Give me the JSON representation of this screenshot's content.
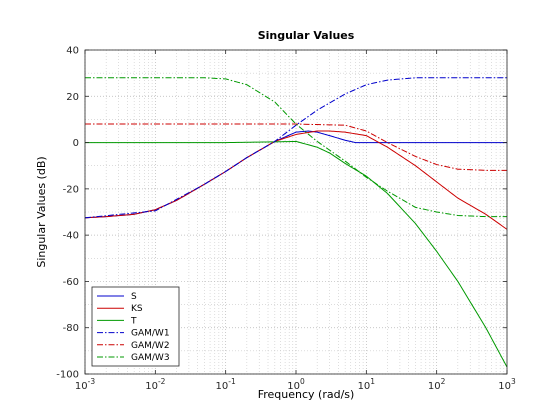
{
  "chart_data": {
    "type": "line",
    "title": "Singular Values",
    "xlabel": "Frequency (rad/s)",
    "ylabel": "Singular Values (dB)",
    "xscale": "log",
    "xlim": [
      0.001,
      1000
    ],
    "ylim": [
      -100,
      40
    ],
    "grid": "major and minor, dotted",
    "legend_position": "bottom-left",
    "x_ticks": [
      {
        "value": 0.001,
        "base": "10",
        "exp": "-3"
      },
      {
        "value": 0.01,
        "base": "10",
        "exp": "-2"
      },
      {
        "value": 0.1,
        "base": "10",
        "exp": "-1"
      },
      {
        "value": 1,
        "base": "10",
        "exp": "0"
      },
      {
        "value": 10,
        "base": "10",
        "exp": "1"
      },
      {
        "value": 100,
        "base": "10",
        "exp": "2"
      },
      {
        "value": 1000,
        "base": "10",
        "exp": "3"
      }
    ],
    "y_ticks": [
      40,
      20,
      0,
      -20,
      -40,
      -60,
      -80,
      -100
    ],
    "series": [
      {
        "name": "S",
        "color": "#0000cc",
        "dash": "solid",
        "x": [
          0.001,
          0.002,
          0.005,
          0.01,
          0.02,
          0.05,
          0.1,
          0.2,
          0.5,
          1,
          1.5,
          2,
          3,
          5,
          7,
          10,
          20,
          50,
          100,
          1000
        ],
        "y": [
          -32.5,
          -32,
          -31,
          -29,
          -25,
          -18,
          -12.5,
          -6.5,
          0.5,
          4.5,
          5,
          4.5,
          3,
          1,
          0,
          0,
          0,
          0,
          0,
          0
        ]
      },
      {
        "name": "KS",
        "color": "#cc0000",
        "dash": "solid",
        "x": [
          0.001,
          0.002,
          0.005,
          0.01,
          0.02,
          0.05,
          0.1,
          0.2,
          0.5,
          1,
          2,
          3,
          5,
          10,
          20,
          50,
          100,
          200,
          500,
          1000
        ],
        "y": [
          -32.5,
          -32,
          -31,
          -29,
          -25,
          -18,
          -12.5,
          -6.5,
          0.5,
          3.5,
          5,
          5,
          4.5,
          3,
          -2,
          -10,
          -17,
          -24,
          -31,
          -37.5
        ]
      },
      {
        "name": "T",
        "color": "#009900",
        "dash": "solid",
        "x": [
          0.001,
          0.01,
          0.1,
          0.5,
          1,
          2,
          3,
          5,
          10,
          20,
          50,
          100,
          200,
          500,
          1000
        ],
        "y": [
          0,
          0,
          0,
          0.3,
          0.5,
          -2,
          -4.5,
          -9,
          -14.5,
          -22,
          -35,
          -47,
          -60,
          -80,
          -97
        ]
      },
      {
        "name": "GAM/W1",
        "color": "#0000cc",
        "dash": "dashdot",
        "x": [
          0.001,
          0.01,
          0.05,
          0.1,
          0.2,
          0.5,
          1,
          2,
          5,
          10,
          20,
          50,
          100,
          1000
        ],
        "y": [
          -32.5,
          -29.5,
          -18,
          -12.5,
          -6.5,
          0.5,
          7.5,
          14,
          21,
          25,
          27,
          28,
          28,
          28
        ]
      },
      {
        "name": "GAM/W2",
        "color": "#cc0000",
        "dash": "dashdot",
        "x": [
          0.001,
          0.1,
          1,
          5,
          10,
          20,
          50,
          100,
          200,
          500,
          1000
        ],
        "y": [
          8,
          8,
          8,
          7.5,
          5,
          0,
          -6,
          -9.5,
          -11.5,
          -12,
          -12
        ]
      },
      {
        "name": "GAM/W3",
        "color": "#009900",
        "dash": "dashdot",
        "x": [
          0.001,
          0.01,
          0.05,
          0.1,
          0.2,
          0.5,
          1,
          2,
          5,
          10,
          20,
          50,
          100,
          200,
          500,
          1000
        ],
        "y": [
          28,
          28,
          28,
          27.5,
          25,
          17.5,
          8,
          0.5,
          -8,
          -15,
          -21,
          -28,
          -30,
          -31.5,
          -32,
          -32
        ]
      }
    ]
  }
}
